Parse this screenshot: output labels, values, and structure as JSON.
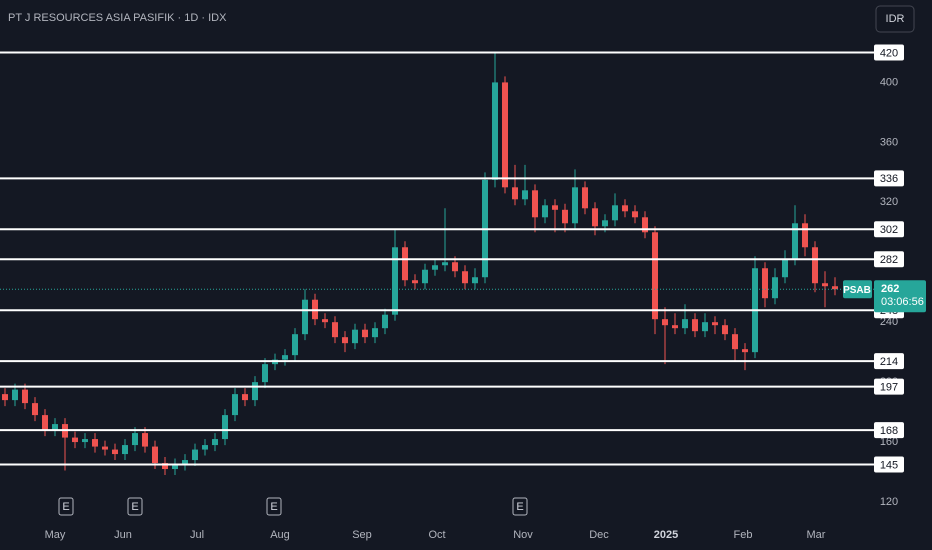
{
  "toolbar": {
    "currency": "IDR"
  },
  "chart_data": {
    "type": "candlestick",
    "title": "PT J RESOURCES ASIA PASIFIK · 1D · IDX",
    "symbol": "PSAB",
    "up_color": "#26a69a",
    "down_color": "#ef5350",
    "open": [
      192,
      188,
      195,
      186,
      178,
      168,
      172,
      163,
      160,
      162,
      157,
      155,
      152,
      158,
      166,
      157,
      146,
      142,
      145,
      148,
      155,
      158,
      162,
      178,
      192,
      188,
      200,
      212,
      215,
      218,
      232,
      255,
      242,
      240,
      230,
      226,
      235,
      230,
      236,
      245,
      290,
      268,
      266,
      275,
      278,
      280,
      274,
      266,
      270,
      335,
      400,
      330,
      322,
      328,
      310,
      318,
      315,
      306,
      330,
      316,
      304,
      308,
      318,
      314,
      310,
      300,
      242,
      238,
      236,
      242,
      234,
      240,
      238,
      232,
      222,
      220,
      276,
      256,
      270,
      282,
      306,
      290,
      266,
      264
    ],
    "high": [
      196,
      199,
      199,
      190,
      182,
      176,
      176,
      167,
      166,
      166,
      161,
      159,
      162,
      170,
      170,
      161,
      150,
      149,
      152,
      159,
      162,
      166,
      182,
      196,
      196,
      204,
      216,
      219,
      222,
      236,
      262,
      259,
      246,
      244,
      234,
      239,
      239,
      240,
      249,
      302,
      294,
      272,
      279,
      282,
      316,
      284,
      278,
      276,
      340,
      420,
      404,
      345,
      345,
      332,
      322,
      322,
      319,
      342,
      334,
      320,
      312,
      326,
      322,
      318,
      314,
      304,
      250,
      246,
      252,
      246,
      246,
      244,
      242,
      236,
      226,
      284,
      280,
      276,
      288,
      318,
      312,
      294,
      274,
      270
    ],
    "low": [
      184,
      184,
      182,
      174,
      164,
      164,
      141,
      156,
      156,
      153,
      151,
      148,
      148,
      154,
      153,
      142,
      138,
      138,
      141,
      144,
      151,
      154,
      158,
      174,
      184,
      184,
      196,
      208,
      211,
      214,
      228,
      238,
      236,
      226,
      220,
      222,
      226,
      226,
      232,
      241,
      264,
      262,
      262,
      271,
      274,
      270,
      262,
      262,
      266,
      330,
      326,
      318,
      318,
      300,
      306,
      300,
      300,
      302,
      312,
      298,
      300,
      304,
      310,
      306,
      296,
      232,
      212,
      232,
      232,
      230,
      230,
      232,
      228,
      214,
      208,
      216,
      250,
      252,
      266,
      278,
      284,
      260,
      250,
      258
    ],
    "close": [
      188,
      195,
      186,
      178,
      168,
      172,
      163,
      160,
      162,
      157,
      155,
      152,
      158,
      166,
      157,
      146,
      142,
      145,
      148,
      155,
      158,
      162,
      178,
      192,
      188,
      200,
      212,
      215,
      218,
      232,
      255,
      242,
      240,
      230,
      226,
      235,
      230,
      236,
      245,
      290,
      268,
      266,
      275,
      278,
      280,
      274,
      266,
      270,
      335,
      400,
      330,
      322,
      328,
      310,
      318,
      315,
      306,
      330,
      316,
      304,
      308,
      318,
      314,
      310,
      300,
      242,
      238,
      236,
      242,
      234,
      240,
      238,
      232,
      222,
      220,
      276,
      256,
      270,
      282,
      306,
      290,
      266,
      264,
      262
    ],
    "ylim": [
      108,
      455
    ],
    "yticks": [
      120,
      160,
      200,
      240,
      280,
      320,
      360,
      400
    ],
    "xlim": [
      -0.5,
      86.5
    ],
    "xticks": [
      {
        "value": 5,
        "label": "May"
      },
      {
        "value": 11.8,
        "label": "Jun"
      },
      {
        "value": 19.2,
        "label": "Jul"
      },
      {
        "value": 27.5,
        "label": "Aug"
      },
      {
        "value": 35.7,
        "label": "Sep"
      },
      {
        "value": 43.2,
        "label": "Oct"
      },
      {
        "value": 51.8,
        "label": "Nov"
      },
      {
        "value": 59.4,
        "label": "Dec"
      },
      {
        "value": 66.1,
        "label": "2025"
      },
      {
        "value": 73.8,
        "label": "Feb"
      },
      {
        "value": 81.1,
        "label": "Mar"
      }
    ],
    "events": [
      {
        "value": 6.1,
        "label": "E"
      },
      {
        "value": 13,
        "label": "E"
      },
      {
        "value": 26.9,
        "label": "E"
      },
      {
        "value": 51.5,
        "label": "E"
      }
    ],
    "levels": [
      420,
      336,
      302,
      282,
      248,
      214,
      197,
      168,
      145
    ],
    "last_price": 262,
    "countdown": "03:06:56"
  }
}
